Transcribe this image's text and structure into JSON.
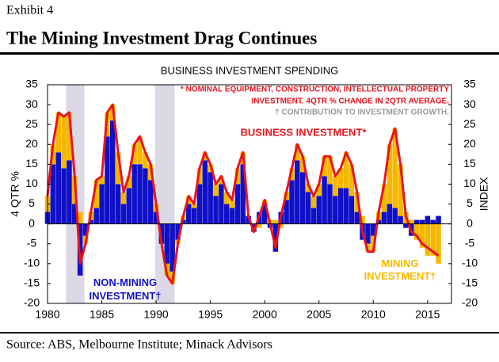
{
  "header": {
    "exhibit": "Exhibit 4"
  },
  "chart_data": {
    "type": "stacked-bar-line",
    "title": "The Mining Investment Drag Continues",
    "subtitle": "BUSINESS INVESTMENT SPENDING",
    "y_label": "4 QTR %",
    "y2_label": "INDEX",
    "notes": [
      "* NOMINAL EQUIPMENT, CONSTRUCTION, INTELLECTUAL PROPERTY",
      "INVESTMENT.  4QTR % CHANGE IN 2QTR AVERAGE.",
      "† CONTRIBUTION TO INVESTMENT GROWTH."
    ],
    "x": [
      1980,
      1980.5,
      1981,
      1981.5,
      1982,
      1982.5,
      1983,
      1983.5,
      1984,
      1984.5,
      1985,
      1985.5,
      1986,
      1986.5,
      1987,
      1987.5,
      1988,
      1988.5,
      1989,
      1989.5,
      1990,
      1990.5,
      1991,
      1991.5,
      1992,
      1992.5,
      1993,
      1993.5,
      1994,
      1994.5,
      1995,
      1995.5,
      1996,
      1996.5,
      1997,
      1997.5,
      1998,
      1998.5,
      1999,
      1999.5,
      2000,
      2000.5,
      2001,
      2001.5,
      2002,
      2002.5,
      2003,
      2003.5,
      2004,
      2004.5,
      2005,
      2005.5,
      2006,
      2006.5,
      2007,
      2007.5,
      2008,
      2008.5,
      2009,
      2009.5,
      2010,
      2010.5,
      2011,
      2011.5,
      2012,
      2012.5,
      2013,
      2013.5,
      2014,
      2014.5,
      2015,
      2015.5,
      2016
    ],
    "series": [
      {
        "name": "NON-MINING INVESTMENT†",
        "color": "#1010c8",
        "mark": "bar",
        "values": [
          3,
          15,
          18,
          14,
          16,
          5,
          -13,
          -3,
          1,
          4,
          10,
          22,
          26,
          10,
          5,
          9,
          15,
          15,
          14,
          11,
          3,
          -5,
          -10,
          -12,
          -4,
          1,
          5,
          4,
          10,
          16,
          13,
          7,
          10,
          5,
          4,
          10,
          15,
          2,
          -2,
          3,
          5,
          -1,
          -7,
          3,
          6,
          11,
          16,
          13,
          8,
          4,
          7,
          12,
          10,
          7,
          9,
          9,
          7,
          3,
          -4,
          -5,
          -3,
          1,
          3,
          5,
          4,
          2,
          -1,
          -3,
          1,
          1,
          2,
          1,
          2
        ]
      },
      {
        "name": "MINING INVESTMENT†",
        "color": "#f5b800",
        "mark": "bar",
        "values": [
          4,
          5,
          10,
          13,
          12,
          7,
          3,
          -2,
          2,
          7,
          2,
          6,
          4,
          8,
          3,
          3,
          5,
          7,
          4,
          4,
          2,
          0,
          -3,
          -3,
          -1,
          1,
          2,
          1,
          4,
          2,
          2,
          3,
          2,
          3,
          2,
          4,
          3,
          0,
          0,
          -1,
          1,
          1,
          1,
          -1,
          2,
          3,
          4,
          4,
          2,
          3,
          3,
          5,
          7,
          5,
          5,
          9,
          8,
          5,
          2,
          -2,
          -4,
          2,
          7,
          15,
          20,
          13,
          3,
          1,
          -4,
          -6,
          -8,
          -8,
          -10
        ]
      },
      {
        "name": "BUSINESS INVESTMENT*",
        "color": "#e8141e",
        "mark": "line",
        "values": [
          7,
          20,
          28,
          27,
          28,
          12,
          -10,
          -5,
          3,
          11,
          12,
          28,
          30,
          18,
          8,
          12,
          20,
          22,
          18,
          15,
          5,
          -5,
          -13,
          -15,
          -5,
          2,
          7,
          5,
          14,
          18,
          15,
          10,
          12,
          8,
          6,
          14,
          18,
          2,
          -2,
          2,
          6,
          0,
          -6,
          2,
          8,
          14,
          20,
          17,
          10,
          7,
          10,
          17,
          17,
          12,
          14,
          18,
          15,
          8,
          -2,
          -7,
          -7,
          3,
          10,
          20,
          24,
          15,
          2,
          -2,
          -3,
          -5,
          -6,
          -7,
          -8
        ]
      }
    ],
    "shaded_periods": [
      [
        1981.7,
        1983.4
      ],
      [
        1989.9,
        1991.7
      ]
    ],
    "shade_color": "#ddd8e6",
    "xlim": [
      1980,
      2017.2
    ],
    "xticks": [
      1980,
      1985,
      1990,
      1995,
      2000,
      2005,
      2010,
      2015
    ],
    "ylim": [
      -20,
      35
    ],
    "yticks": [
      -20,
      -15,
      -10,
      -5,
      0,
      5,
      10,
      15,
      20,
      25,
      30,
      35
    ],
    "y2lim": [
      -20,
      35
    ],
    "y2ticks": [
      -20,
      -15,
      -10,
      -5,
      0,
      5,
      10,
      15,
      20,
      25,
      30,
      35
    ]
  },
  "footer": {
    "source": "Source: ABS, Melbourne Institute; Minack Advisors"
  }
}
